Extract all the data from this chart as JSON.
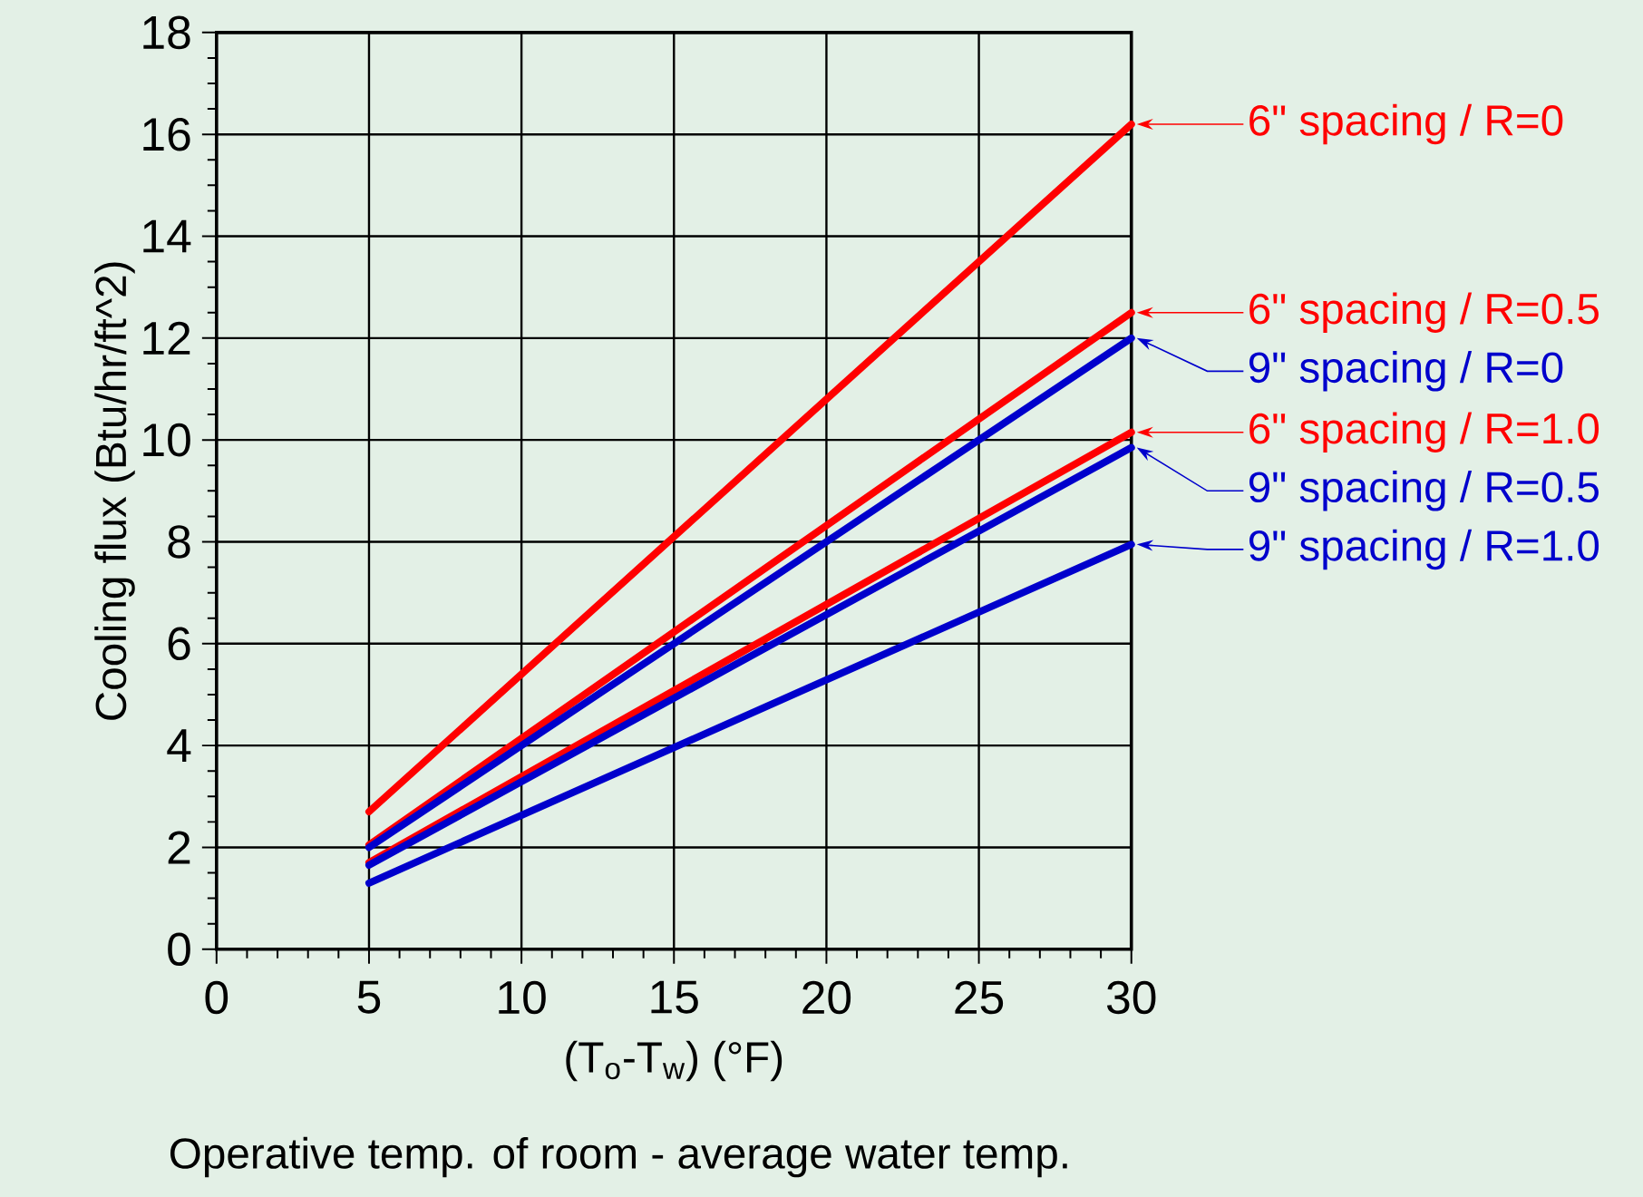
{
  "chart_data": {
    "type": "line",
    "xlabel": "(T$_{o}$-T$_{w}$) (°F)",
    "ylabel": "Cooling flux (Btu/hr/ft^2)",
    "annotations": [
      "Operative temp. of room - average water temp."
    ],
    "x": [
      5,
      30
    ],
    "series": [
      {
        "name": "6\" spacing / R=0",
        "color": "#ff0000",
        "values": [
          2.7,
          16.2
        ]
      },
      {
        "name": "6\" spacing / R=0.5",
        "color": "#ff0000",
        "values": [
          2.05,
          12.5
        ]
      },
      {
        "name": "9\" spacing / R=0",
        "color": "#0000cc",
        "values": [
          2.0,
          12.0
        ]
      },
      {
        "name": "6\" spacing / R=1.0",
        "color": "#ff0000",
        "values": [
          1.7,
          10.15
        ]
      },
      {
        "name": "9\" spacing / R=0.5",
        "color": "#0000cc",
        "values": [
          1.65,
          9.85
        ]
      },
      {
        "name": "9\" spacing / R=1.0",
        "color": "#0000cc",
        "values": [
          1.3,
          7.95
        ]
      }
    ],
    "xlim": [
      0,
      30
    ],
    "ylim": [
      0,
      18
    ],
    "xticks": [
      0,
      5,
      10,
      15,
      20,
      25,
      30
    ],
    "yticks": [
      0,
      2,
      4,
      6,
      8,
      10,
      12,
      14,
      16,
      18
    ],
    "grid": true,
    "legend": "right",
    "marker": "none",
    "line_style": "solid"
  }
}
